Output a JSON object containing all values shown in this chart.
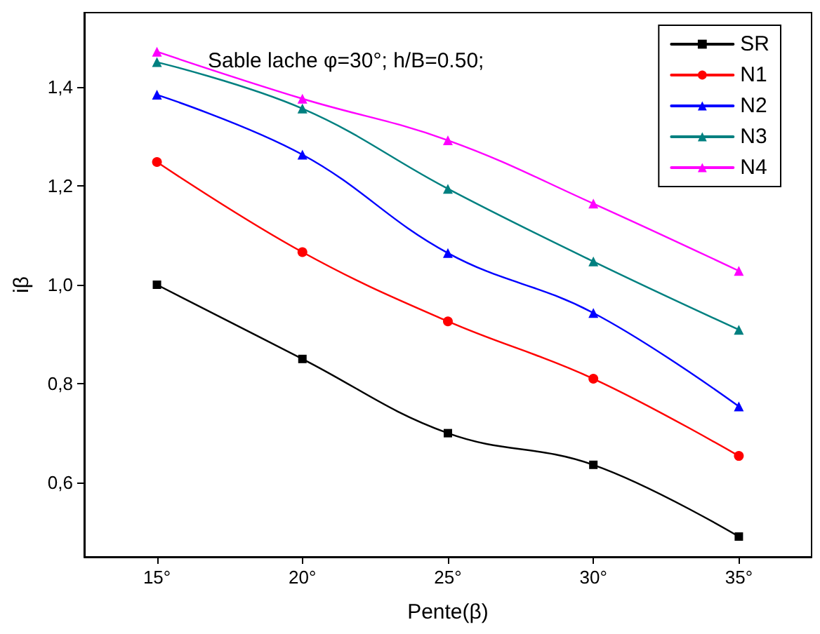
{
  "chart_data": {
    "type": "line",
    "xlabel": "Pente(β)",
    "ylabel": "iβ",
    "annotations": [
      "Sable lache φ=30°; h/B=0.50;"
    ],
    "x": [
      15,
      20,
      25,
      30,
      35
    ],
    "series": [
      {
        "name": "SR",
        "color": "#000000",
        "marker": "square",
        "values": [
          1.0,
          0.85,
          0.7,
          0.636,
          0.491
        ]
      },
      {
        "name": "N1",
        "color": "#ff0000",
        "marker": "circle",
        "values": [
          1.248,
          1.066,
          0.926,
          0.81,
          0.654
        ]
      },
      {
        "name": "N2",
        "color": "#0000ff",
        "marker": "triangle",
        "values": [
          1.384,
          1.263,
          1.064,
          0.943,
          0.754
        ]
      },
      {
        "name": "N3",
        "color": "#008080",
        "marker": "triangle",
        "values": [
          1.45,
          1.356,
          1.194,
          1.047,
          0.909
        ]
      },
      {
        "name": "N4",
        "color": "#ff00ff",
        "marker": "triangle",
        "values": [
          1.471,
          1.376,
          1.292,
          1.164,
          1.028
        ]
      }
    ],
    "xlim": [
      12.5,
      37.5
    ],
    "xticks": [
      {
        "value": 15,
        "label": "15°"
      },
      {
        "value": 20,
        "label": "20°"
      },
      {
        "value": 25,
        "label": "25°"
      },
      {
        "value": 30,
        "label": "30°"
      },
      {
        "value": 35,
        "label": "35°"
      }
    ],
    "ylim": [
      0.45,
      1.55
    ],
    "yticks": [
      {
        "value": 0.6,
        "label": "0,6"
      },
      {
        "value": 0.8,
        "label": "0,8"
      },
      {
        "value": 1.0,
        "label": "1,0"
      },
      {
        "value": 1.2,
        "label": "1,2"
      },
      {
        "value": 1.4,
        "label": "1,4"
      }
    ],
    "grid": false,
    "legend": "top right",
    "line_style": "solid"
  }
}
